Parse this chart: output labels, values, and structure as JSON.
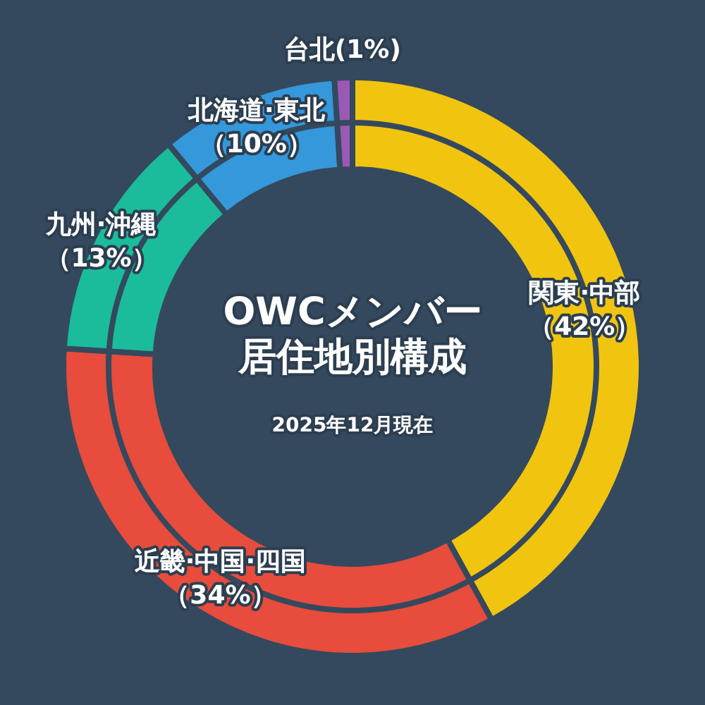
{
  "chart_data": {
    "type": "donut",
    "title": "OWCメンバー居住地別構成",
    "subtitle": "2025年12月現在",
    "categories": [
      "関東·中部",
      "近畿·中国·四国",
      "九州·沖縄",
      "北海道·東北",
      "台北"
    ],
    "values": [
      42,
      34,
      13,
      10,
      1
    ],
    "colors": [
      "#f1c40f",
      "#e74c3c",
      "#1abc9c",
      "#3498db",
      "#9b59b6"
    ],
    "value_labels": [
      "（42%）",
      "（34%）",
      "（13%）",
      "（10%）",
      "(1%)"
    ],
    "legend": false
  }
}
